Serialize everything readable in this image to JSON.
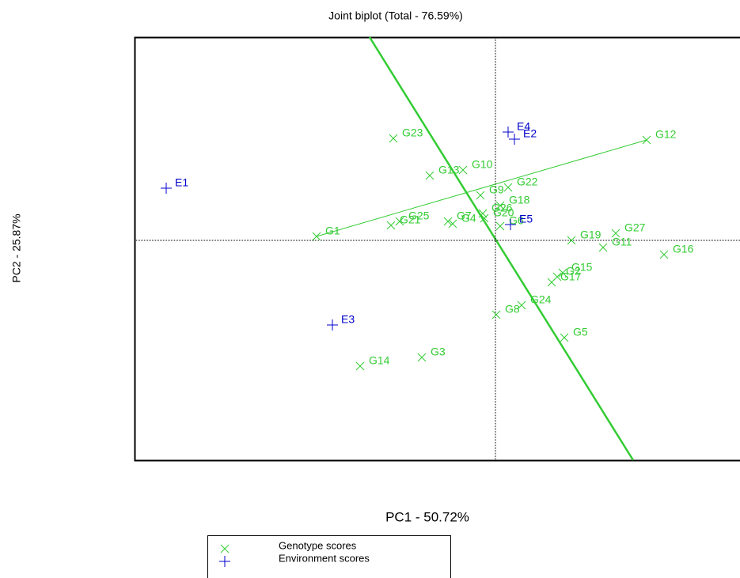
{
  "chart_data": {
    "type": "scatter",
    "title": "Joint biplot (Total - 76.59%)",
    "xlabel": "PC1 - 50.72%",
    "ylabel": "PC2 - 25.87%",
    "xlim": [
      -4.56,
      3.09
    ],
    "ylim": [
      -2.78,
      2.57
    ],
    "series": [
      {
        "name": "Genotype scores",
        "color": "#33cc33",
        "marker": "x",
        "labels": [
          "G1",
          "G2",
          "G3",
          "G4",
          "G5",
          "G6",
          "G7",
          "G8",
          "G9",
          "G10",
          "G11",
          "G12",
          "G13",
          "G14",
          "G15",
          "G16",
          "G17",
          "G18",
          "G19",
          "G20",
          "G21",
          "G22",
          "G23",
          "G24",
          "G25",
          "G26",
          "G27"
        ],
        "x": [
          -2.26,
          0.78,
          -0.93,
          -0.54,
          0.87,
          0.06,
          -0.6,
          0.01,
          -0.19,
          -0.41,
          1.36,
          1.91,
          -0.83,
          -1.71,
          0.85,
          2.13,
          0.71,
          0.06,
          0.96,
          -0.14,
          -1.32,
          0.16,
          -1.29,
          0.33,
          -1.21,
          -0.16,
          1.52
        ],
        "values": [
          0.05,
          -0.46,
          -1.48,
          0.21,
          -1.23,
          0.18,
          0.24,
          -0.94,
          0.57,
          0.89,
          -0.09,
          1.27,
          0.82,
          -1.59,
          -0.41,
          -0.18,
          -0.53,
          0.44,
          0.0,
          0.28,
          0.19,
          0.67,
          1.29,
          -0.82,
          0.24,
          0.34,
          0.09
        ]
      },
      {
        "name": "Environment scores",
        "color": "#0000cc",
        "marker": "+",
        "labels": [
          "E1",
          "E2",
          "E3",
          "E4",
          "E5"
        ],
        "x": [
          -4.16,
          0.24,
          -2.06,
          0.16,
          0.19
        ],
        "values": [
          0.66,
          1.28,
          -1.07,
          1.37,
          0.2
        ]
      }
    ]
  }
}
